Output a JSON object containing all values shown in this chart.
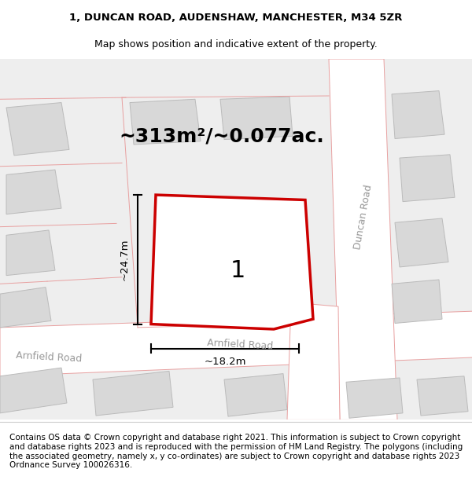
{
  "title_line1": "1, DUNCAN ROAD, AUDENSHAW, MANCHESTER, M34 5ZR",
  "title_line2": "Map shows position and indicative extent of the property.",
  "area_label": "~313m²/~0.077ac.",
  "number_label": "1",
  "dim_height": "~24.7m",
  "dim_width": "~18.2m",
  "road_label_arnfield": "Arnfield Road",
  "road_label_arnfield2": "Arnfield Road",
  "road_label_duncan": "Duncan Road",
  "copyright_text": "Contains OS data © Crown copyright and database right 2021. This information is subject to Crown copyright and database rights 2023 and is reproduced with the permission of HM Land Registry. The polygons (including the associated geometry, namely x, y co-ordinates) are subject to Crown copyright and database rights 2023 Ordnance Survey 100026316.",
  "map_bg": "#eeeeee",
  "road_fill": "#ffffff",
  "building_fill": "#d8d8d8",
  "plot_fill": "#ffffff",
  "plot_edge": "#cc0000",
  "road_line_color": "#e8a0a0",
  "building_edge": "#bbbbbb",
  "title_fontsize": 9.5,
  "subtitle_fontsize": 9,
  "area_fontsize": 18,
  "copyright_fontsize": 7.5
}
